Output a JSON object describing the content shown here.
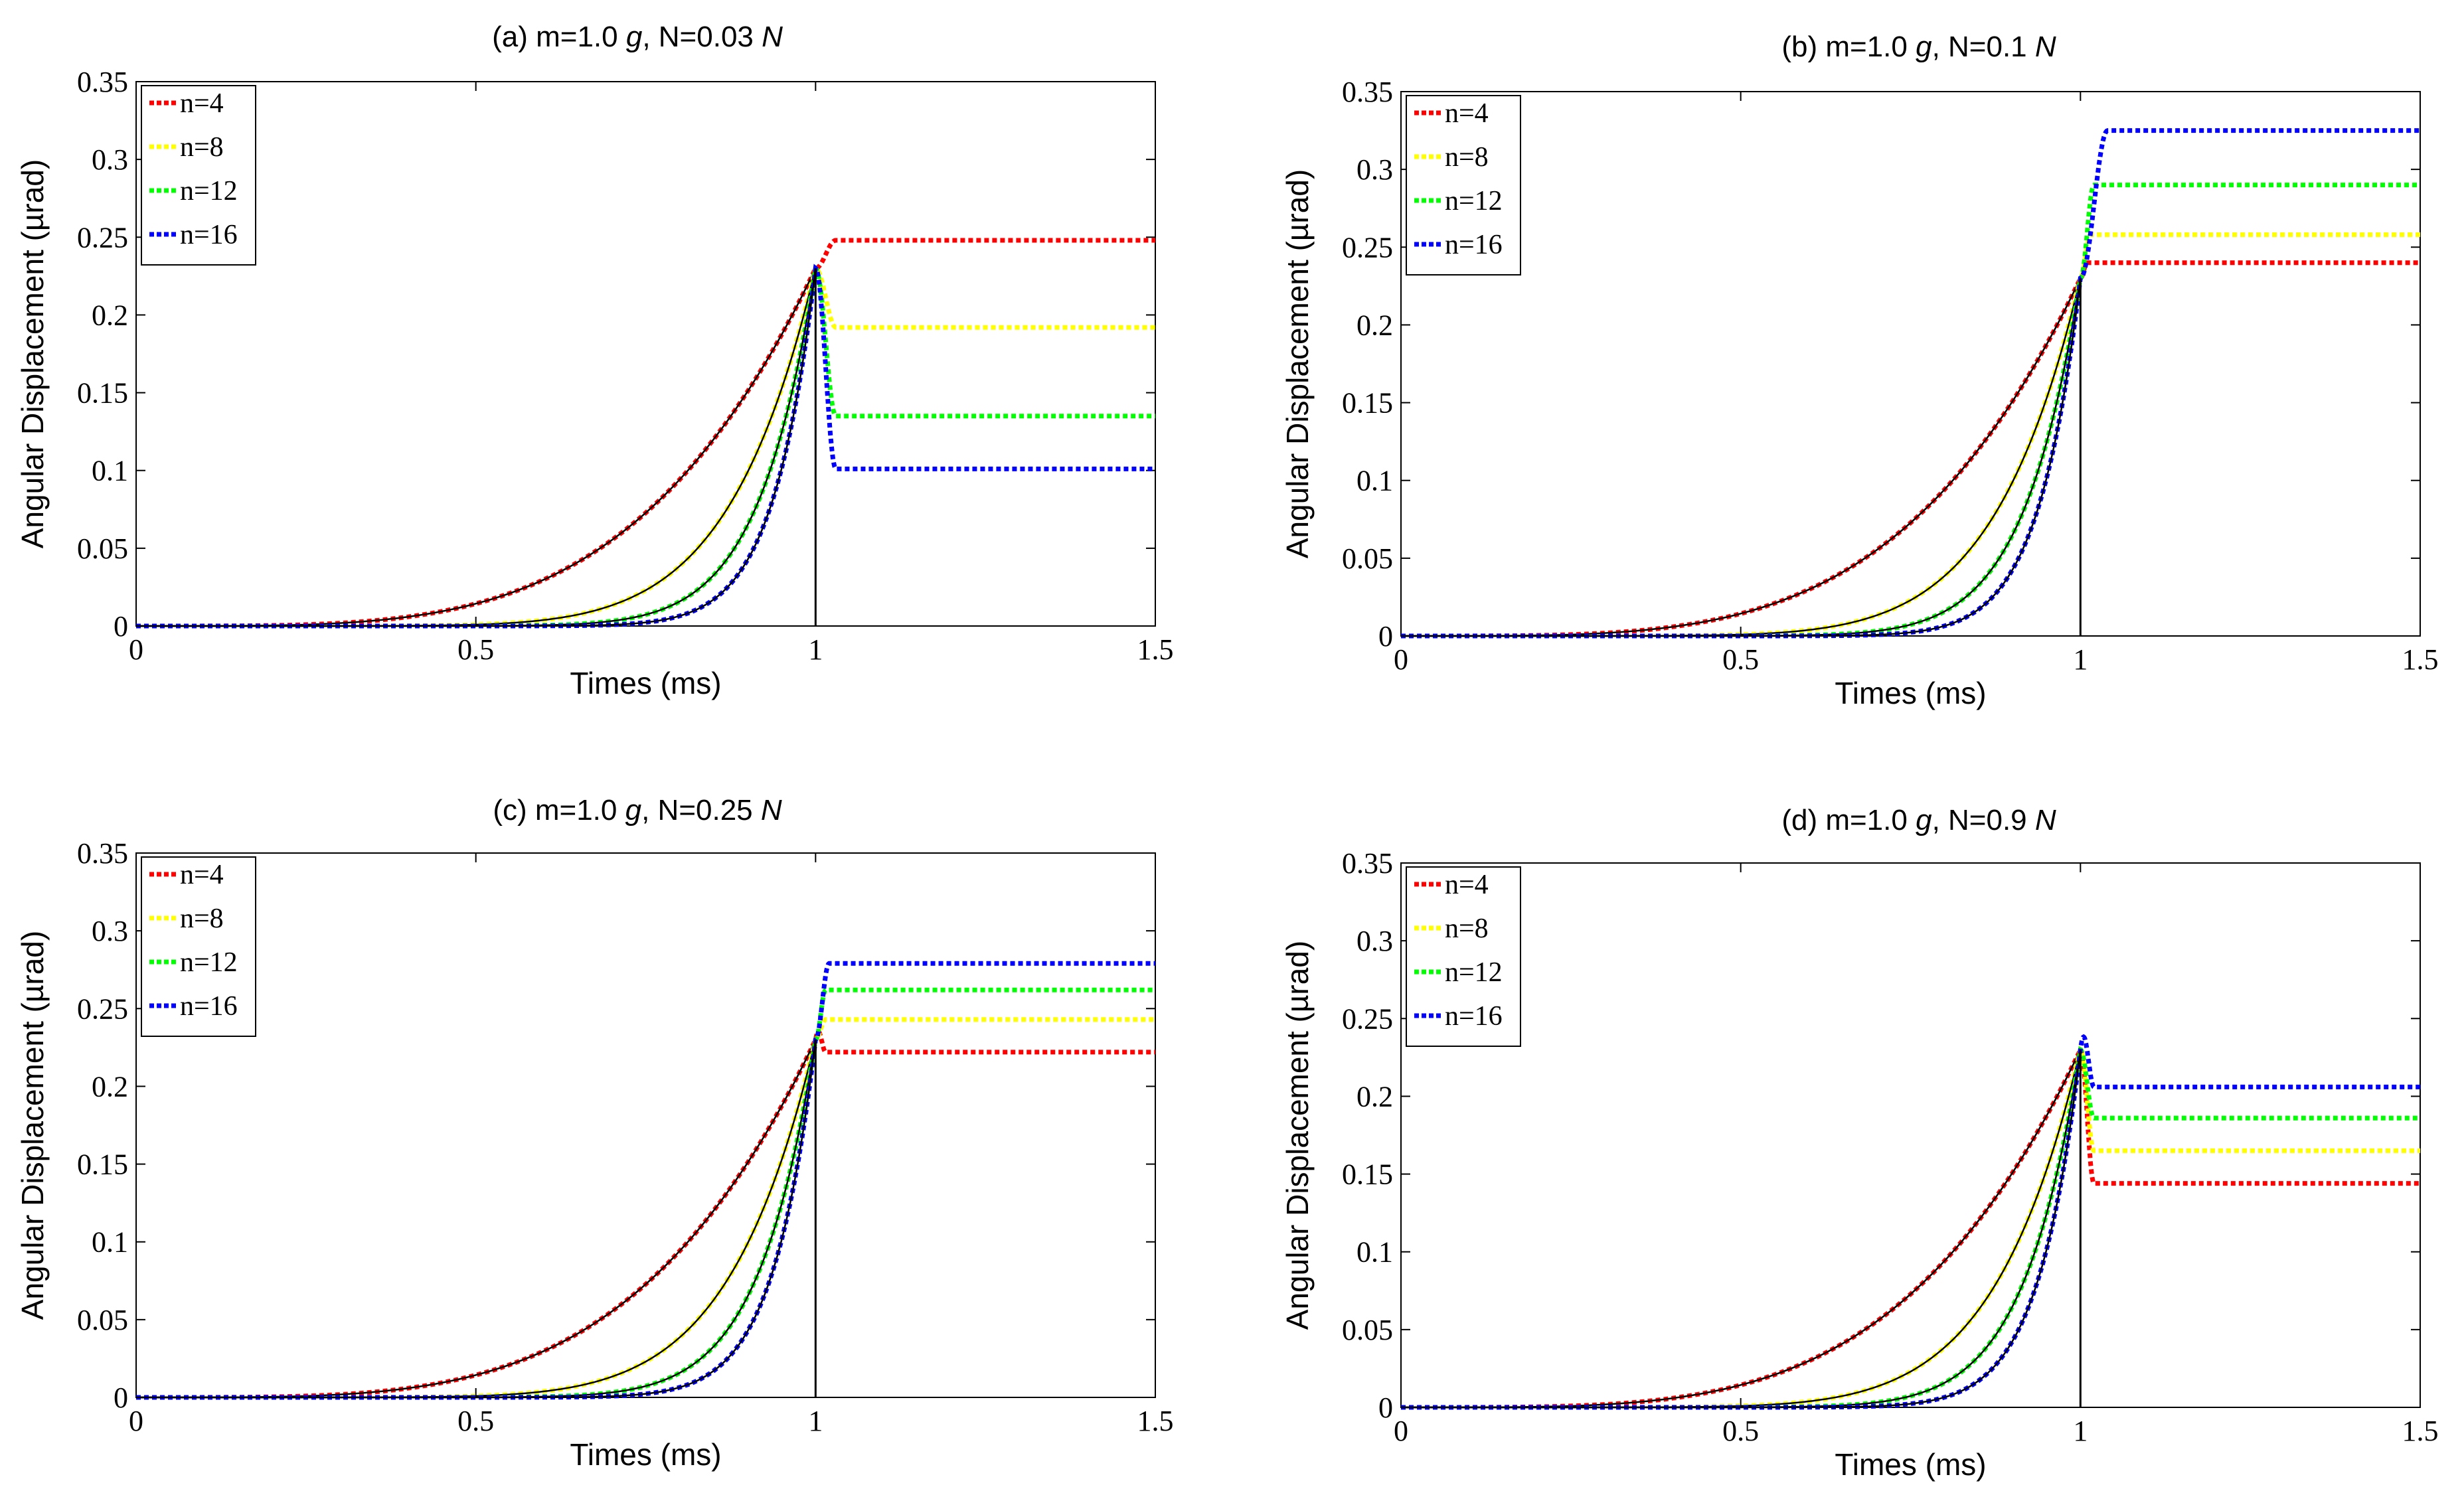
{
  "chart_data": [
    {
      "type": "line",
      "panel": "a",
      "title_prefix": "(a)   m=1.0 ",
      "title_m_unit": "g",
      "title_mid": ", N=0.03 ",
      "title_n_unit": "N",
      "xlabel": "Times (ms)",
      "ylabel": "Angular Displacement (µrad)",
      "xlim": [
        0,
        1.5
      ],
      "ylim": [
        0,
        0.35
      ],
      "xticks": [
        "0",
        "0.5",
        "1",
        "1.5"
      ],
      "yticks": [
        "0",
        "0.05",
        "0.1",
        "0.15",
        "0.2",
        "0.25",
        "0.3",
        "0.35"
      ],
      "legend_position": "top-left",
      "peak": 0.23,
      "series": [
        {
          "name": "n=4",
          "power": 4,
          "color": "#ff0000",
          "final": 0.248,
          "trans": 0.03
        },
        {
          "name": "n=8",
          "power": 8,
          "color": "#ffff00",
          "final": 0.192,
          "trans": 0.03
        },
        {
          "name": "n=12",
          "power": 12,
          "color": "#00ff00",
          "final": 0.135,
          "trans": 0.03
        },
        {
          "name": "n=16",
          "power": 16,
          "color": "#0000ff",
          "final": 0.101,
          "trans": 0.03
        }
      ]
    },
    {
      "type": "line",
      "panel": "b",
      "title_prefix": "(b)   m=1.0 ",
      "title_m_unit": "g",
      "title_mid": ", N=0.1 ",
      "title_n_unit": "N",
      "xlabel": "Times (ms)",
      "ylabel": "Angular Displacement (µrad)",
      "xlim": [
        0,
        1.5
      ],
      "ylim": [
        0,
        0.35
      ],
      "xticks": [
        "0",
        "0.5",
        "1",
        "1.5"
      ],
      "yticks": [
        "0",
        "0.05",
        "0.1",
        "0.15",
        "0.2",
        "0.25",
        "0.3",
        "0.35"
      ],
      "legend_position": "top-left",
      "peak": 0.23,
      "series": [
        {
          "name": "n=4",
          "power": 4,
          "color": "#ff0000",
          "final": 0.24,
          "trans": 0.01
        },
        {
          "name": "n=8",
          "power": 8,
          "color": "#ffff00",
          "final": 0.258,
          "trans": 0.015
        },
        {
          "name": "n=12",
          "power": 12,
          "color": "#00ff00",
          "final": 0.29,
          "trans": 0.02
        },
        {
          "name": "n=16",
          "power": 16,
          "color": "#0000ff",
          "final": 0.325,
          "trans": 0.04
        }
      ]
    },
    {
      "type": "line",
      "panel": "c",
      "title_prefix": "(c)   m=1.0 ",
      "title_m_unit": "g",
      "title_mid": ", N=0.25 ",
      "title_n_unit": "N",
      "xlabel": "Times (ms)",
      "ylabel": "Angular Displacement (µrad)",
      "xlim": [
        0,
        1.5
      ],
      "ylim": [
        0,
        0.35
      ],
      "xticks": [
        "0",
        "0.5",
        "1",
        "1.5"
      ],
      "yticks": [
        "0",
        "0.05",
        "0.1",
        "0.15",
        "0.2",
        "0.25",
        "0.3",
        "0.35"
      ],
      "legend_position": "top-left",
      "peak": 0.23,
      "series": [
        {
          "name": "n=4",
          "power": 4,
          "color": "#ff0000",
          "final": 0.222,
          "trans": 0.015,
          "bump": 0.012
        },
        {
          "name": "n=8",
          "power": 8,
          "color": "#ffff00",
          "final": 0.243,
          "trans": 0.015
        },
        {
          "name": "n=12",
          "power": 12,
          "color": "#00ff00",
          "final": 0.262,
          "trans": 0.015
        },
        {
          "name": "n=16",
          "power": 16,
          "color": "#0000ff",
          "final": 0.279,
          "trans": 0.02
        }
      ]
    },
    {
      "type": "line",
      "panel": "d",
      "title_prefix": "(d)   m=1.0 ",
      "title_m_unit": "g",
      "title_mid": ", N=0.9 ",
      "title_n_unit": "N",
      "xlabel": "Times (ms)",
      "ylabel": "Angular Displacement (µrad)",
      "xlim": [
        0,
        1.5
      ],
      "ylim": [
        0,
        0.35
      ],
      "xticks": [
        "0",
        "0.5",
        "1",
        "1.5"
      ],
      "yticks": [
        "0",
        "0.05",
        "0.1",
        "0.15",
        "0.2",
        "0.25",
        "0.3",
        "0.35"
      ],
      "legend_position": "top-left",
      "peak": 0.23,
      "series": [
        {
          "name": "n=4",
          "power": 4,
          "color": "#ff0000",
          "final": 0.144,
          "trans": 0.02
        },
        {
          "name": "n=8",
          "power": 8,
          "color": "#ffff00",
          "final": 0.165,
          "trans": 0.02
        },
        {
          "name": "n=12",
          "power": 12,
          "color": "#00ff00",
          "final": 0.186,
          "trans": 0.02
        },
        {
          "name": "n=16",
          "power": 16,
          "color": "#0000ff",
          "final": 0.206,
          "trans": 0.02,
          "bump": 0.022
        }
      ]
    }
  ]
}
